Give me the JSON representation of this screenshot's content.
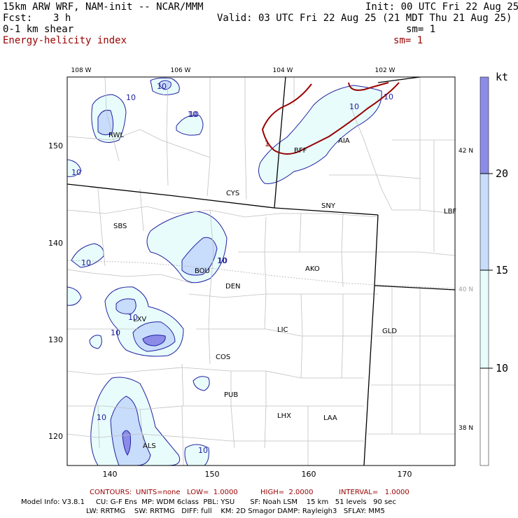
{
  "header": {
    "model": "15km ARW WRF, NAM-init -- NCAR/MMM",
    "fcst_label": "Fcst:",
    "fcst_value": "3 h",
    "field1": "0-1 km shear",
    "field2": "Energy-helicity index",
    "init": "Init: 00 UTC Fri 22 Aug 25",
    "valid": "Valid: 03 UTC Fri 22 Aug 25 (21 MDT Thu 21 Aug 25)",
    "sm1": "sm= 1",
    "sm2": "sm= 1"
  },
  "map": {
    "lon_labels": [
      "108 W",
      "106 W",
      "104 W",
      "102 W"
    ],
    "lat_labels": [
      "42 N",
      "40 N",
      "38 N"
    ],
    "grid_x": [
      "140",
      "150",
      "160",
      "170"
    ],
    "grid_y": [
      "150",
      "140",
      "130",
      "120"
    ],
    "stations": [
      "RWL",
      "BFF",
      "AIA",
      "CYS",
      "SNY",
      "LBF",
      "SBS",
      "BOU",
      "DEN",
      "AKO",
      "LXV",
      "LIC",
      "GLD",
      "COS",
      "PUB",
      "LHX",
      "LAA",
      "ALS"
    ],
    "contour_labels": [
      "10",
      "10",
      "10",
      "10",
      "10",
      "10",
      "10",
      "10",
      "10",
      "10",
      "10",
      "10",
      "10",
      "10"
    ],
    "ehi_labels": [
      "1"
    ],
    "colors": {
      "shear_10_15": "#e8fcfc",
      "shear_15_20": "#c8dcfc",
      "shear_20_plus": "#8c8ce8",
      "ehi_contour": "#990000",
      "shear_contour": "#2020a0"
    }
  },
  "colorbar": {
    "unit": "kt",
    "ticks": [
      "20",
      "15",
      "10"
    ]
  },
  "footer": {
    "contours_label": "CONTOURS:",
    "contours_units": "UNITS=none",
    "contours_low": "LOW=  1.0000",
    "contours_high": "HIGH=  2.0000",
    "contours_interval": "INTERVAL=   1.0000",
    "model_info_1": "Model Info: V3.8.1     CU: G-F Ens  MP: WDM 6class  PBL: YSU       SF: Noah LSM    15 km   51 levels   90 sec",
    "model_info_2": "LW: RRTMG    SW: RRTMG   DIFF: full    KM: 2D Smagor DAMP: Rayleigh3   SFLAY: MM5"
  }
}
